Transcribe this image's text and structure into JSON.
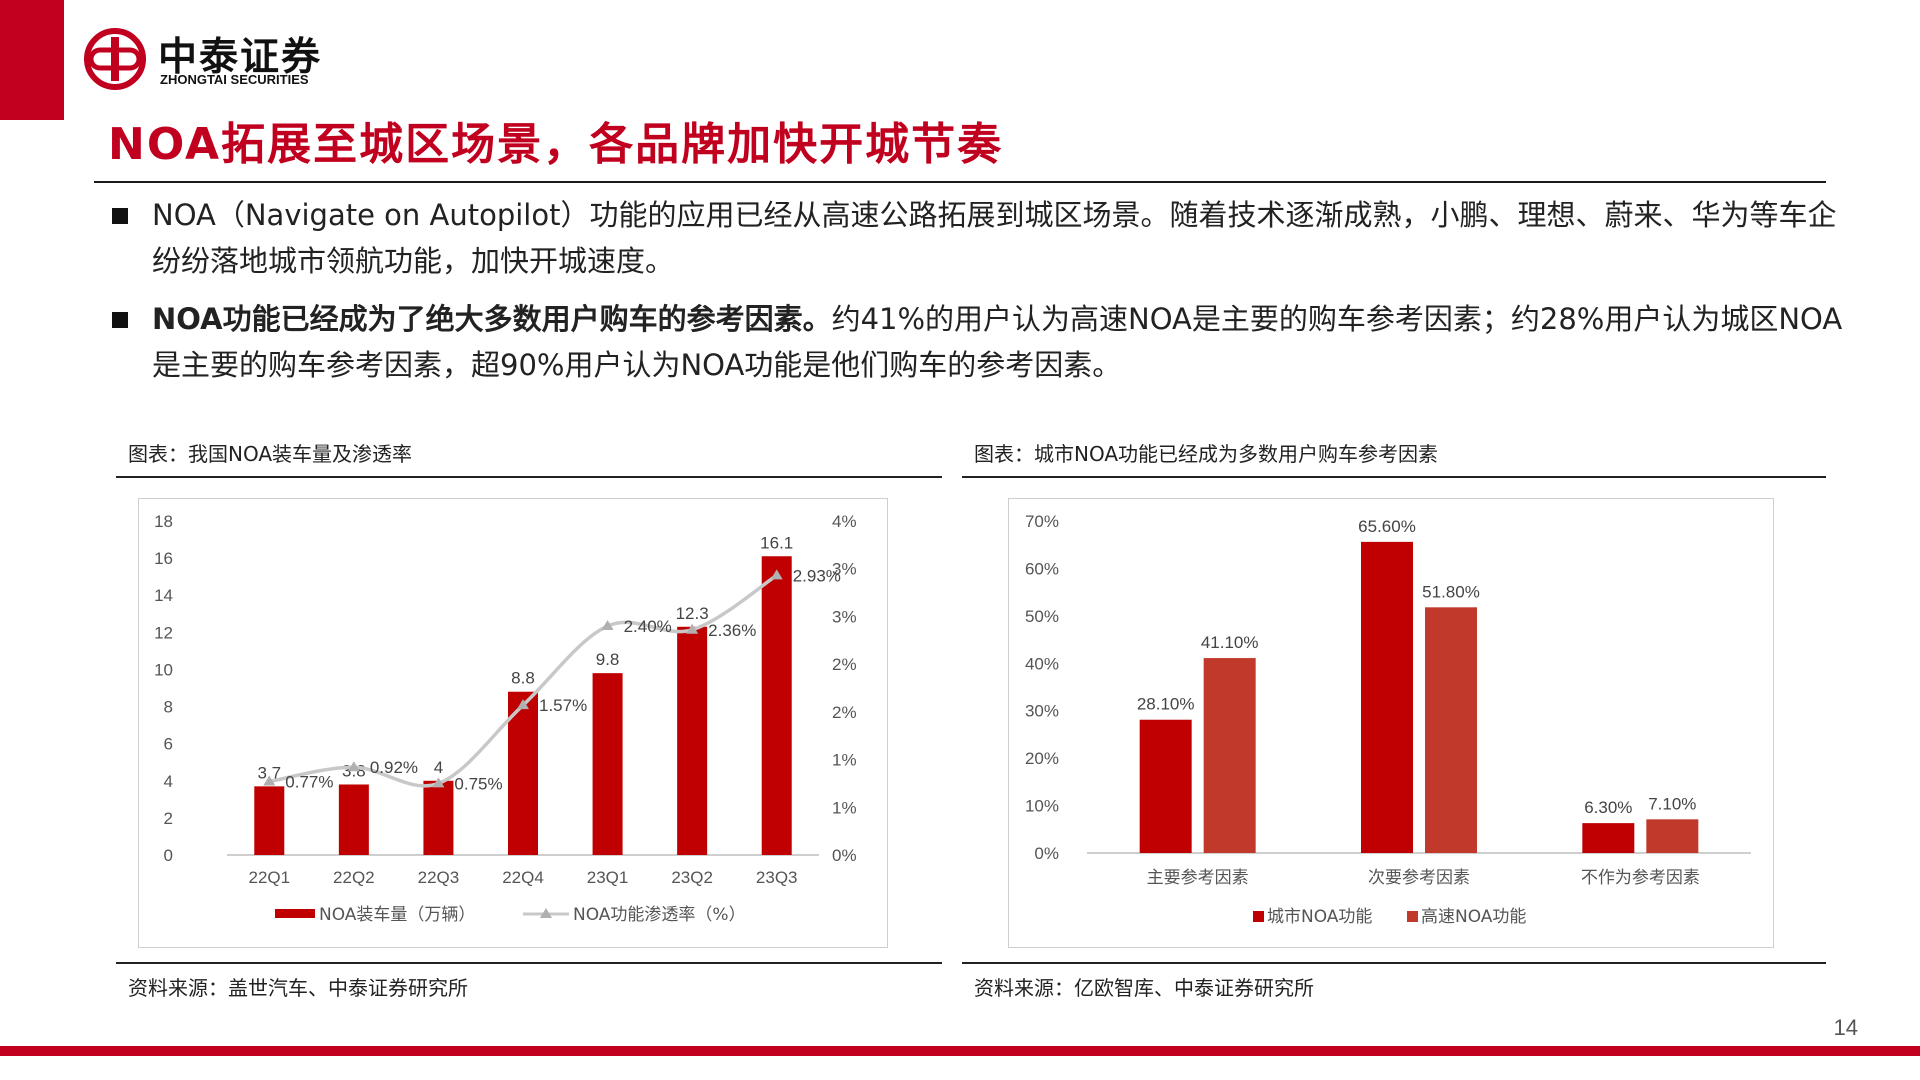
{
  "logo": {
    "name_cn": "中泰证券",
    "name_en": "ZHONGTAI SECURITIES"
  },
  "title": "NOA拓展至城区场景，各品牌加快开城节奏",
  "bullets": [
    {
      "bold": "",
      "text": "NOA（Navigate on Autopilot）功能的应用已经从高速公路拓展到城区场景。随着技术逐渐成熟，小鹏、理想、蔚来、华为等车企纷纷落地城市领航功能，加快开城速度。"
    },
    {
      "bold": "NOA功能已经成为了绝大多数用户购车的参考因素。",
      "text": "约41%的用户认为高速NOA是主要的购车参考因素；约28%用户认为城区NOA是主要的购车参考因素，超90%用户认为NOA功能是他们购车的参考因素。"
    }
  ],
  "left_panel": {
    "caption": "图表：我国NOA装车量及渗透率",
    "source": "资料来源：盖世汽车、中泰证券研究所"
  },
  "right_panel": {
    "caption": "图表：城市NOA功能已经成为多数用户购车参考因素",
    "source": "资料来源：亿欧智库、中泰证券研究所"
  },
  "page_number": "14",
  "colors": {
    "brand_red": "#c0001e",
    "series_dark_red": "#c00000",
    "series_orange_red": "#c0392b",
    "line_gray": "#c8c8c8"
  },
  "chart_data": [
    {
      "type": "bar",
      "categories": [
        "22Q1",
        "22Q2",
        "22Q3",
        "22Q4",
        "23Q1",
        "23Q2",
        "23Q3"
      ],
      "series": [
        {
          "name": "NOA装车量（万辆）",
          "type": "bar",
          "axis": "left",
          "values": [
            3.7,
            3.8,
            4,
            8.8,
            9.8,
            12.3,
            16.1
          ],
          "labels": [
            "3.7",
            "3.8",
            "4",
            "8.8",
            "9.8",
            "12.3",
            "16.1"
          ],
          "color": "#c00000"
        },
        {
          "name": "NOA功能渗透率（%）",
          "type": "line",
          "axis": "right",
          "values": [
            0.77,
            0.92,
            0.75,
            1.57,
            2.4,
            2.36,
            2.93
          ],
          "labels": [
            "0.77%",
            "0.92%",
            "0.75%",
            "1.57%",
            "2.40%",
            "2.36%",
            "2.93%"
          ],
          "color": "#c8c8c8"
        }
      ],
      "ylim": [
        0,
        18
      ],
      "yticks": [
        "0",
        "2",
        "4",
        "6",
        "8",
        "10",
        "12",
        "14",
        "16",
        "18"
      ],
      "y2lim": [
        0,
        3.5
      ],
      "y2ticks": [
        "0%",
        "1%",
        "1%",
        "2%",
        "2%",
        "3%",
        "3%",
        "4%"
      ],
      "grid": false,
      "legend": "bottom"
    },
    {
      "type": "bar",
      "categories": [
        "主要参考因素",
        "次要参考因素",
        "不作为参考因素"
      ],
      "series": [
        {
          "name": "城市NOA功能",
          "values": [
            28.1,
            65.6,
            6.3
          ],
          "labels": [
            "28.10%",
            "65.60%",
            "6.30%"
          ],
          "color": "#c00000"
        },
        {
          "name": "高速NOA功能",
          "values": [
            41.1,
            51.8,
            7.1
          ],
          "labels": [
            "41.10%",
            "51.80%",
            "7.10%"
          ],
          "color": "#c0392b"
        }
      ],
      "ylim": [
        0,
        70
      ],
      "yticks": [
        "0%",
        "10%",
        "20%",
        "30%",
        "40%",
        "50%",
        "60%",
        "70%"
      ],
      "grid": false,
      "legend": "bottom"
    }
  ]
}
